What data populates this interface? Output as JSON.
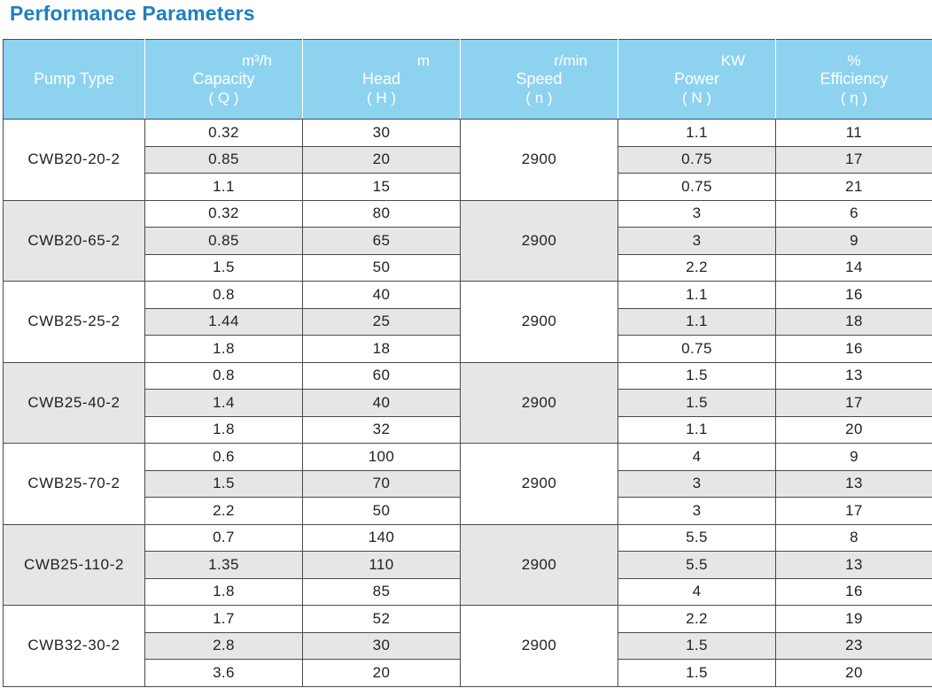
{
  "title": "Performance Parameters",
  "headers": [
    {
      "unit": "",
      "name": "Pump Type",
      "sym": ""
    },
    {
      "unit": "m³/h",
      "name": "Capacity",
      "sym": "( Q )"
    },
    {
      "unit": "m",
      "name": "Head",
      "sym": "( H )"
    },
    {
      "unit": "r/min",
      "name": "Speed",
      "sym": "( n )"
    },
    {
      "unit": "KW",
      "name": "Power",
      "sym": "( N )"
    },
    {
      "unit": "%",
      "name": "Efficiency",
      "sym": "( η )"
    }
  ],
  "groups": [
    {
      "type": "CWB20-20-2",
      "speed": "2900",
      "rows": [
        {
          "q": "0.32",
          "h": "30",
          "n": "1.1",
          "e": "11"
        },
        {
          "q": "0.85",
          "h": "20",
          "n": "0.75",
          "e": "17"
        },
        {
          "q": "1.1",
          "h": "15",
          "n": "0.75",
          "e": "21"
        }
      ]
    },
    {
      "type": "CWB20-65-2",
      "speed": "2900",
      "rows": [
        {
          "q": "0.32",
          "h": "80",
          "n": "3",
          "e": "6"
        },
        {
          "q": "0.85",
          "h": "65",
          "n": "3",
          "e": "9"
        },
        {
          "q": "1.5",
          "h": "50",
          "n": "2.2",
          "e": "14"
        }
      ]
    },
    {
      "type": "CWB25-25-2",
      "speed": "2900",
      "rows": [
        {
          "q": "0.8",
          "h": "40",
          "n": "1.1",
          "e": "16"
        },
        {
          "q": "1.44",
          "h": "25",
          "n": "1.1",
          "e": "18"
        },
        {
          "q": "1.8",
          "h": "18",
          "n": "0.75",
          "e": "16"
        }
      ]
    },
    {
      "type": "CWB25-40-2",
      "speed": "2900",
      "rows": [
        {
          "q": "0.8",
          "h": "60",
          "n": "1.5",
          "e": "13"
        },
        {
          "q": "1.4",
          "h": "40",
          "n": "1.5",
          "e": "17"
        },
        {
          "q": "1.8",
          "h": "32",
          "n": "1.1",
          "e": "20"
        }
      ]
    },
    {
      "type": "CWB25-70-2",
      "speed": "2900",
      "rows": [
        {
          "q": "0.6",
          "h": "100",
          "n": "4",
          "e": "9"
        },
        {
          "q": "1.5",
          "h": "70",
          "n": "3",
          "e": "13"
        },
        {
          "q": "2.2",
          "h": "50",
          "n": "3",
          "e": "17"
        }
      ]
    },
    {
      "type": "CWB25-110-2",
      "speed": "2900",
      "rows": [
        {
          "q": "0.7",
          "h": "140",
          "n": "5.5",
          "e": "8"
        },
        {
          "q": "1.35",
          "h": "110",
          "n": "5.5",
          "e": "13"
        },
        {
          "q": "1.8",
          "h": "85",
          "n": "4",
          "e": "16"
        }
      ]
    },
    {
      "type": "CWB32-30-2",
      "speed": "2900",
      "rows": [
        {
          "q": "1.7",
          "h": "52",
          "n": "2.2",
          "e": "19"
        },
        {
          "q": "2.8",
          "h": "30",
          "n": "1.5",
          "e": "23"
        },
        {
          "q": "3.6",
          "h": "20",
          "n": "1.5",
          "e": "20"
        }
      ]
    }
  ]
}
